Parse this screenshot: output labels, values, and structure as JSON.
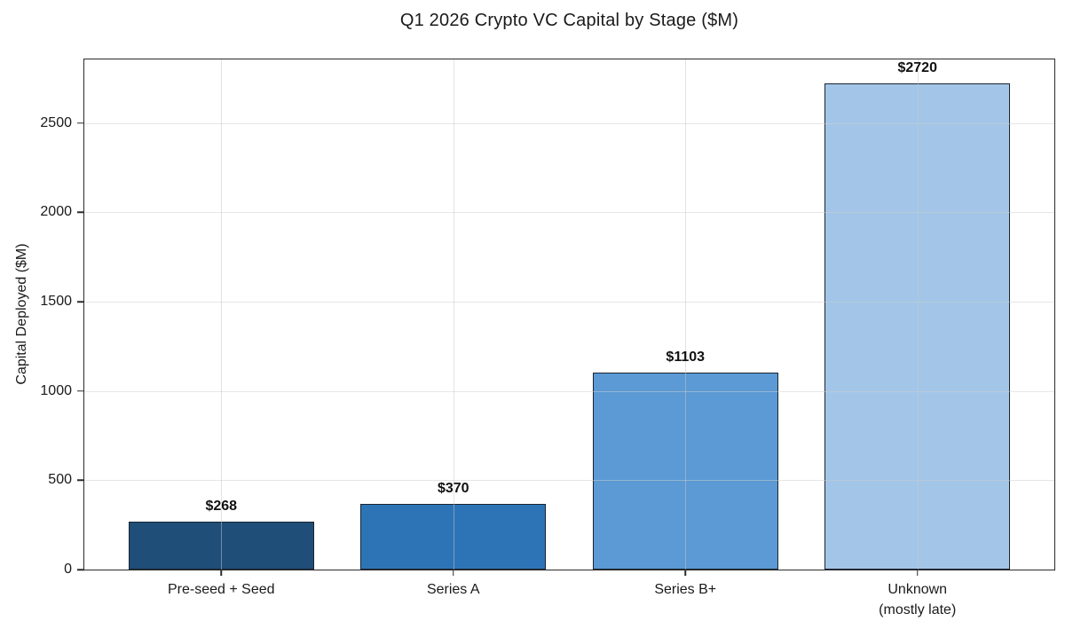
{
  "chart_data": {
    "type": "bar",
    "title": "Q1 2026 Crypto VC Capital by Stage ($M)",
    "xlabel": "",
    "ylabel": "Capital Deployed ($M)",
    "categories": [
      "Pre-seed + Seed",
      "Series A",
      "Series B+",
      "Unknown\n(mostly late)"
    ],
    "values": [
      268,
      370,
      1103,
      2720
    ],
    "value_labels": [
      "$268",
      "$370",
      "$1103",
      "$2720"
    ],
    "bar_colors": [
      "#1f4e78",
      "#2d74b7",
      "#5b9ad4",
      "#a3c6e8"
    ],
    "bar_edge_color": "#1b2430",
    "yticks": [
      0,
      500,
      1000,
      1500,
      2000,
      2500
    ],
    "ylim": [
      0,
      2856
    ],
    "grid": true,
    "grid_color": "#e3e3e3",
    "legend_position": "none",
    "background_color": "#ffffff"
  }
}
